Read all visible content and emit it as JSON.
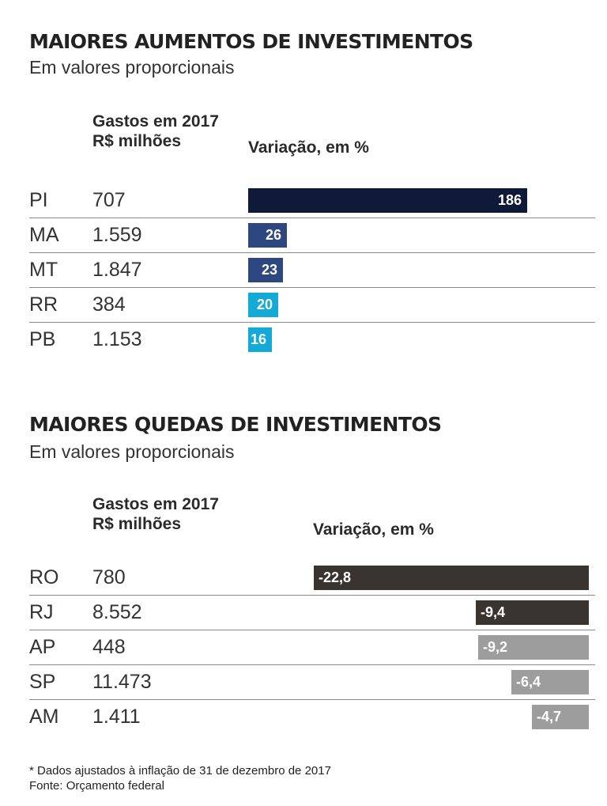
{
  "chart_data": [
    {
      "type": "bar",
      "orientation": "horizontal",
      "title": "MAIORES AUMENTOS DE INVESTIMENTOS",
      "subtitle": "Em valores proporcionais",
      "column_headers": {
        "gastos_line1": "Gastos em 2017",
        "gastos_line2": "R$ milhões",
        "variacao": "Variação, em %"
      },
      "categories": [
        "PI",
        "MA",
        "MT",
        "RR",
        "PB"
      ],
      "gastos": [
        "707",
        "1.559",
        "1.847",
        "384",
        "1.153"
      ],
      "values": [
        186,
        26,
        23,
        20,
        16
      ],
      "value_labels": [
        "186",
        "26",
        "23",
        "20",
        "16"
      ],
      "colors": [
        "#0e1a38",
        "#2f4781",
        "#2f4781",
        "#13aad8",
        "#13aad8"
      ],
      "xlim": [
        0,
        186
      ],
      "gridlines": "row separators"
    },
    {
      "type": "bar",
      "orientation": "horizontal",
      "title": "MAIORES QUEDAS DE INVESTIMENTOS",
      "subtitle": "Em valores proporcionais",
      "column_headers": {
        "gastos_line1": "Gastos em 2017",
        "gastos_line2": "R$ milhões",
        "variacao": "Variação, em %"
      },
      "categories": [
        "RO",
        "RJ",
        "AP",
        "SP",
        "AM"
      ],
      "gastos": [
        "780",
        "8.552",
        "448",
        "11.473",
        "1.411"
      ],
      "values": [
        -22.8,
        -9.4,
        -9.2,
        -6.4,
        -4.7
      ],
      "value_labels": [
        "-22,8",
        "-9,4",
        "-9,2",
        "-6,4",
        "-4,7"
      ],
      "colors": [
        "#3a3430",
        "#3a3430",
        "#9d9d9d",
        "#9d9d9d",
        "#9d9d9d"
      ],
      "xlim": [
        -22.8,
        0
      ],
      "gridlines": "row separators"
    }
  ],
  "footnotes": {
    "note": "* Dados ajustados à inflação de 31 de dezembro de 2017",
    "source": "Fonte: Orçamento federal"
  }
}
